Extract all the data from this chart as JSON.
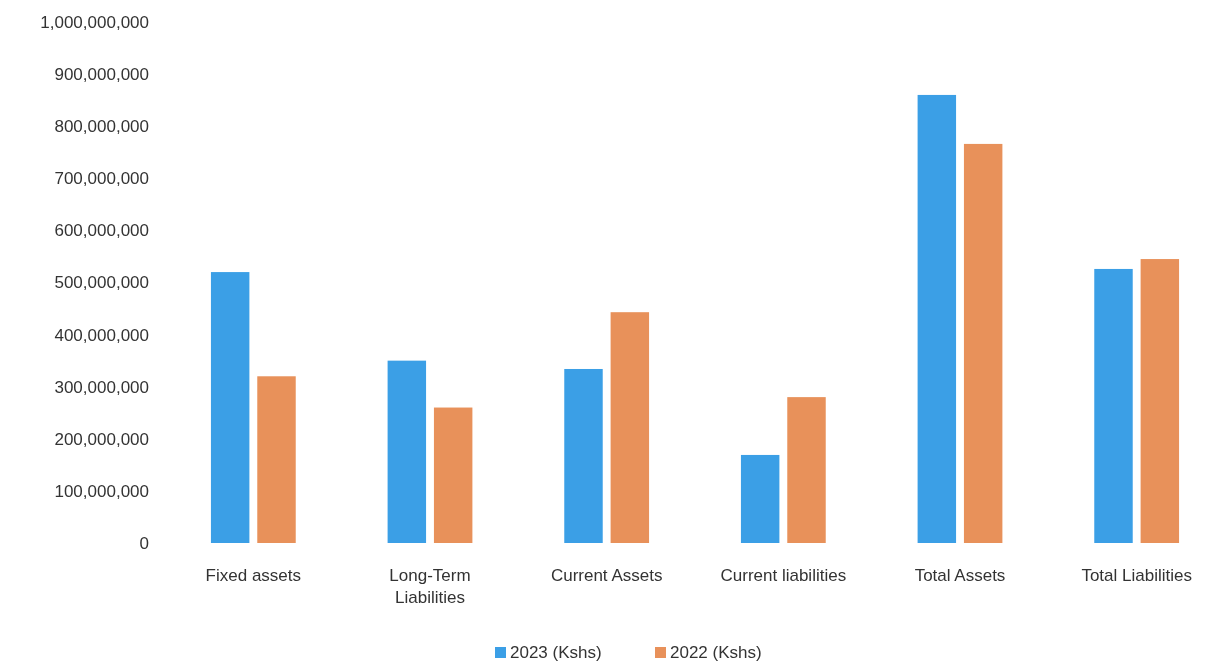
{
  "chart_data": {
    "type": "bar",
    "categories": [
      "Fixed assets",
      "Long-Term Liabilities",
      "Current Assets",
      "Current liabilities",
      "Total Assets",
      "Total Liabilities"
    ],
    "series": [
      {
        "name": "2023 (Kshs)",
        "color": "#3b9fe6",
        "values": [
          520000000,
          350000000,
          334000000,
          169000000,
          860000000,
          526000000
        ]
      },
      {
        "name": "2022 (Kshs)",
        "color": "#e8915a",
        "values": [
          320000000,
          260000000,
          443000000,
          280000000,
          766000000,
          545000000
        ]
      }
    ],
    "ylim": [
      0,
      1000000000
    ],
    "yticks": [
      {
        "value": 0,
        "label": "0"
      },
      {
        "value": 100000000,
        "label": "100,000,000"
      },
      {
        "value": 200000000,
        "label": "200,000,000"
      },
      {
        "value": 300000000,
        "label": "300,000,000"
      },
      {
        "value": 400000000,
        "label": "400,000,000"
      },
      {
        "value": 500000000,
        "label": "500,000,000"
      },
      {
        "value": 600000000,
        "label": "600,000,000"
      },
      {
        "value": 700000000,
        "label": "700,000,000"
      },
      {
        "value": 800000000,
        "label": "800,000,000"
      },
      {
        "value": 900000000,
        "label": "900,000,000"
      },
      {
        "value": 1000000000,
        "label": "1,000,000,000"
      }
    ],
    "legend": "bottom"
  }
}
